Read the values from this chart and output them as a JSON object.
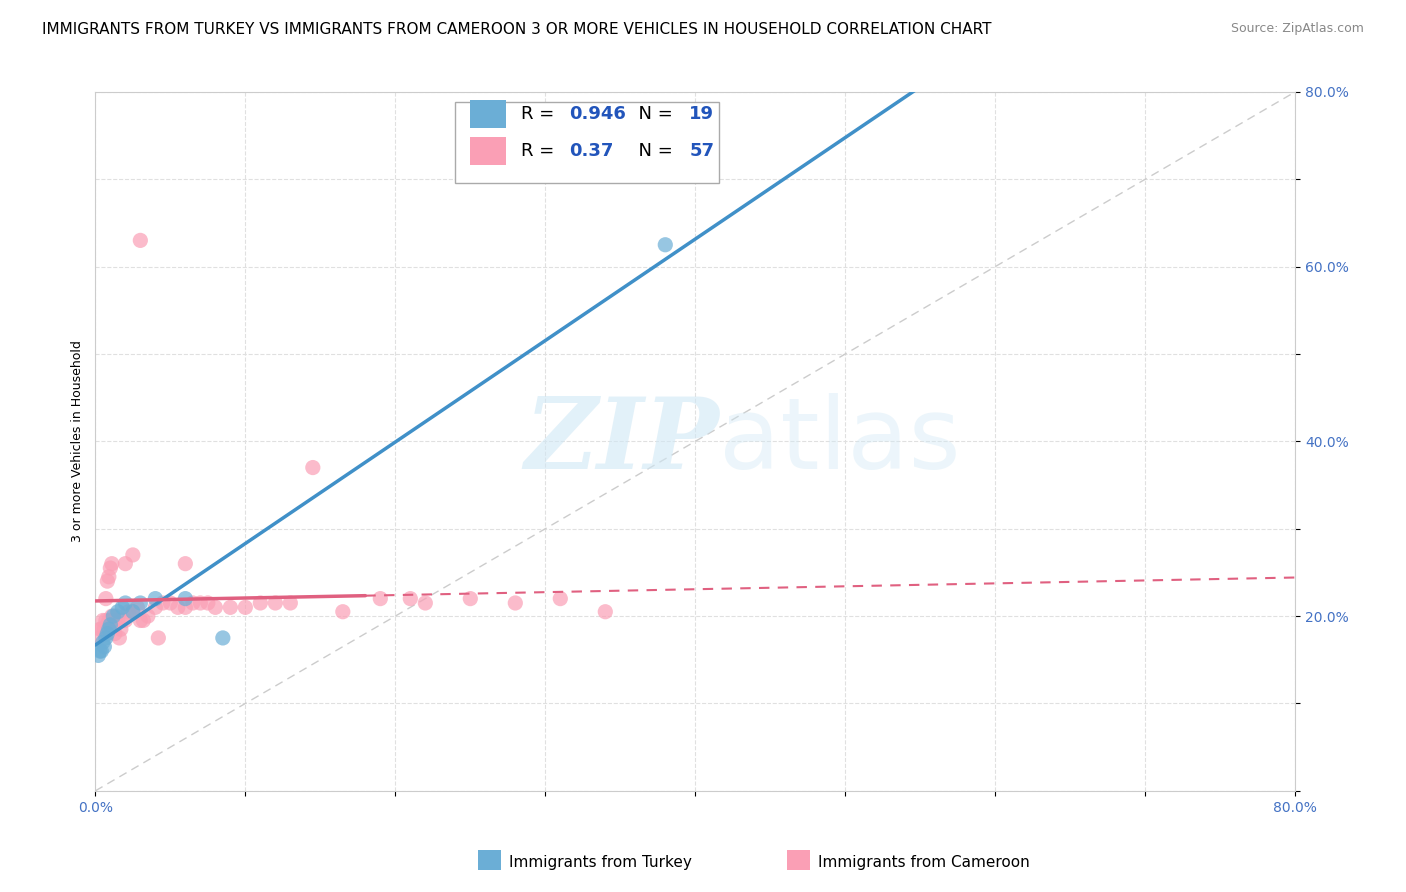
{
  "title": "IMMIGRANTS FROM TURKEY VS IMMIGRANTS FROM CAMEROON 3 OR MORE VEHICLES IN HOUSEHOLD CORRELATION CHART",
  "source": "Source: ZipAtlas.com",
  "ylabel": "3 or more Vehicles in Household",
  "xlim": [
    0.0,
    0.8
  ],
  "ylim": [
    0.0,
    0.8
  ],
  "turkey_color": "#6baed6",
  "cameroon_color": "#fa9fb5",
  "turkey_line_color": "#4090c8",
  "cameroon_line_color": "#e06080",
  "turkey_R": 0.946,
  "turkey_N": 19,
  "cameroon_R": 0.37,
  "cameroon_N": 57,
  "turkey_scatter_x": [
    0.002,
    0.003,
    0.004,
    0.005,
    0.006,
    0.007,
    0.008,
    0.009,
    0.01,
    0.012,
    0.015,
    0.018,
    0.02,
    0.025,
    0.03,
    0.04,
    0.06,
    0.085,
    0.38
  ],
  "turkey_scatter_y": [
    0.155,
    0.16,
    0.16,
    0.17,
    0.165,
    0.175,
    0.18,
    0.185,
    0.19,
    0.2,
    0.205,
    0.21,
    0.215,
    0.205,
    0.215,
    0.22,
    0.22,
    0.175,
    0.625
  ],
  "cameroon_scatter_x": [
    0.002,
    0.003,
    0.004,
    0.005,
    0.006,
    0.007,
    0.008,
    0.009,
    0.01,
    0.011,
    0.012,
    0.013,
    0.014,
    0.015,
    0.016,
    0.017,
    0.018,
    0.02,
    0.022,
    0.025,
    0.028,
    0.03,
    0.032,
    0.035,
    0.04,
    0.042,
    0.045,
    0.05,
    0.055,
    0.06,
    0.065,
    0.07,
    0.075,
    0.08,
    0.09,
    0.1,
    0.11,
    0.12,
    0.13,
    0.145,
    0.165,
    0.19,
    0.21,
    0.22,
    0.25,
    0.28,
    0.31,
    0.34,
    0.007,
    0.008,
    0.009,
    0.01,
    0.011,
    0.02,
    0.025,
    0.03,
    0.06
  ],
  "cameroon_scatter_y": [
    0.175,
    0.185,
    0.185,
    0.195,
    0.185,
    0.195,
    0.19,
    0.195,
    0.195,
    0.2,
    0.195,
    0.18,
    0.2,
    0.195,
    0.175,
    0.185,
    0.195,
    0.195,
    0.205,
    0.205,
    0.21,
    0.195,
    0.195,
    0.2,
    0.21,
    0.175,
    0.215,
    0.215,
    0.21,
    0.21,
    0.215,
    0.215,
    0.215,
    0.21,
    0.21,
    0.21,
    0.215,
    0.215,
    0.215,
    0.37,
    0.205,
    0.22,
    0.22,
    0.215,
    0.22,
    0.215,
    0.22,
    0.205,
    0.22,
    0.24,
    0.245,
    0.255,
    0.26,
    0.26,
    0.27,
    0.63,
    0.26
  ],
  "watermark_zip": "ZIP",
  "watermark_atlas": "atlas",
  "background_color": "#ffffff",
  "grid_color": "#e0e0e0",
  "title_fontsize": 11,
  "axis_label_fontsize": 9,
  "tick_fontsize": 10
}
